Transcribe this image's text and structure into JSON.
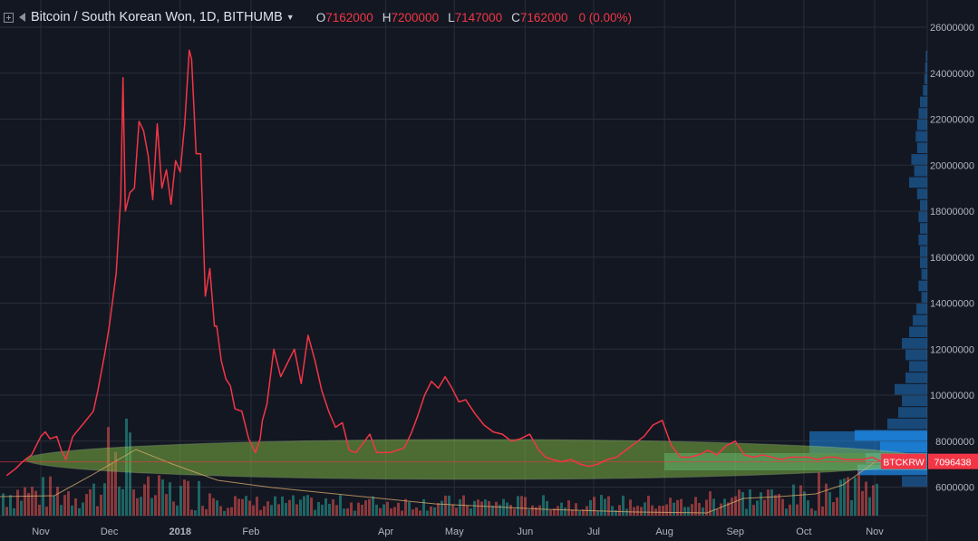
{
  "header": {
    "symbol_title": "Bitcoin / South Korean Won, 1D, BITHUMB",
    "open_key": "O",
    "open": "7162000",
    "high_key": "H",
    "high": "7200000",
    "low_key": "L",
    "low": "7147000",
    "close_key": "C",
    "close": "7162000",
    "change": "0 (0.00%)",
    "icons": [
      "expand-icon",
      "flag-icon",
      "chevron-down-icon"
    ]
  },
  "colors": {
    "background": "#131722",
    "price_line": "#f23645",
    "grid": "#2a2e39",
    "profile": "#1e88e5",
    "value_area": "#4dd0c4",
    "ellipse": "#7cb342",
    "vol_up": "#26a69a",
    "vol_down": "#ef5350"
  },
  "chart_data": {
    "type": "line",
    "y_ticks": [
      "26000000",
      "24000000",
      "22000000",
      "20000000",
      "18000000",
      "16000000",
      "14000000",
      "12000000",
      "10000000",
      "8000000",
      "6000000"
    ],
    "x_ticks": [
      "Nov",
      "Dec",
      "2018",
      "Feb",
      "Apr",
      "May",
      "Jun",
      "Jul",
      "Aug",
      "Sep",
      "Oct",
      "Nov"
    ],
    "ylim": [
      4400000,
      27000000
    ],
    "grid": true,
    "price_label": {
      "symbol": "BTCKRW",
      "value": "7096438"
    },
    "series": [
      {
        "x": [
          "2017-10-17",
          "2017-10-21",
          "2017-10-24",
          "2017-10-28",
          "2017-11-01",
          "2017-11-03",
          "2017-11-05",
          "2017-11-08",
          "2017-11-10",
          "2017-11-12",
          "2017-11-15",
          "2017-11-20",
          "2017-11-24",
          "2017-11-26",
          "2017-11-29",
          "2017-12-01",
          "2017-12-04",
          "2017-12-06",
          "2017-12-07",
          "2017-12-08",
          "2017-12-10",
          "2017-12-12",
          "2017-12-14",
          "2017-12-16",
          "2017-12-18",
          "2017-12-20",
          "2017-12-22",
          "2017-12-24",
          "2017-12-26",
          "2017-12-28",
          "2017-12-30",
          "2018-01-01",
          "2018-01-03",
          "2018-01-05",
          "2018-01-06",
          "2018-01-08",
          "2018-01-10",
          "2018-01-12",
          "2018-01-14",
          "2018-01-16",
          "2018-01-17",
          "2018-01-19",
          "2018-01-21",
          "2018-01-23",
          "2018-01-25",
          "2018-01-28",
          "2018-01-31",
          "2018-02-03",
          "2018-02-05",
          "2018-02-06",
          "2018-02-08",
          "2018-02-11",
          "2018-02-14",
          "2018-02-17",
          "2018-02-20",
          "2018-02-23",
          "2018-02-26",
          "2018-03-01",
          "2018-03-04",
          "2018-03-07",
          "2018-03-10",
          "2018-03-13",
          "2018-03-16",
          "2018-03-19",
          "2018-03-22",
          "2018-03-25",
          "2018-03-28",
          "2018-03-31",
          "2018-04-03",
          "2018-04-06",
          "2018-04-09",
          "2018-04-12",
          "2018-04-15",
          "2018-04-18",
          "2018-04-21",
          "2018-04-24",
          "2018-04-27",
          "2018-04-30",
          "2018-05-03",
          "2018-05-06",
          "2018-05-10",
          "2018-05-14",
          "2018-05-18",
          "2018-05-22",
          "2018-05-26",
          "2018-05-30",
          "2018-06-03",
          "2018-06-07",
          "2018-06-10",
          "2018-06-13",
          "2018-06-17",
          "2018-06-21",
          "2018-06-25",
          "2018-06-29",
          "2018-07-03",
          "2018-07-07",
          "2018-07-11",
          "2018-07-15",
          "2018-07-19",
          "2018-07-23",
          "2018-07-27",
          "2018-07-31",
          "2018-08-04",
          "2018-08-08",
          "2018-08-12",
          "2018-08-16",
          "2018-08-20",
          "2018-08-24",
          "2018-08-28",
          "2018-09-01",
          "2018-09-05",
          "2018-09-09",
          "2018-09-13",
          "2018-09-17",
          "2018-09-21",
          "2018-09-25",
          "2018-09-29",
          "2018-10-03",
          "2018-10-07",
          "2018-10-11",
          "2018-10-15",
          "2018-10-19",
          "2018-10-23",
          "2018-10-27",
          "2018-10-31",
          "2018-11-04"
        ],
        "y": [
          6500000,
          6800000,
          7100000,
          7400000,
          8200000,
          8400000,
          8100000,
          8200000,
          7600000,
          7200000,
          8200000,
          8800000,
          9300000,
          10200000,
          11800000,
          13000000,
          15300000,
          18600000,
          23800000,
          18000000,
          18800000,
          19000000,
          21900000,
          21500000,
          20400000,
          18500000,
          21800000,
          19000000,
          19800000,
          18300000,
          20200000,
          19700000,
          21800000,
          25000000,
          24600000,
          20500000,
          20500000,
          14300000,
          15500000,
          13000000,
          13000000,
          11500000,
          10700000,
          10400000,
          9400000,
          9300000,
          8100000,
          7500000,
          8100000,
          8900000,
          9600000,
          12000000,
          10800000,
          11400000,
          12000000,
          10500000,
          12600000,
          11500000,
          10200000,
          9300000,
          8600000,
          8800000,
          7600000,
          7500000,
          7900000,
          8300000,
          7500000,
          7500000,
          7500000,
          7600000,
          7700000,
          8300000,
          9100000,
          10000000,
          10600000,
          10300000,
          10800000,
          10300000,
          9700000,
          9800000,
          9200000,
          8700000,
          8400000,
          8300000,
          8000000,
          8100000,
          8300000,
          7600000,
          7300000,
          7200000,
          7100000,
          7200000,
          7000000,
          6900000,
          7000000,
          7200000,
          7300000,
          7600000,
          7900000,
          8200000,
          8700000,
          8900000,
          7800000,
          7300000,
          7300000,
          7400000,
          7600000,
          7400000,
          7800000,
          8000000,
          7400000,
          7300000,
          7400000,
          7300000,
          7200000,
          7300000,
          7300000,
          7300000,
          7200000,
          7300000,
          7300000,
          7200000,
          7200000,
          7200000,
          7300000,
          7100000
        ]
      }
    ],
    "volume_profile": {
      "bin_width": 500000,
      "bins_low": [
        6000000,
        6500000,
        7000000,
        7500000,
        8000000,
        8500000,
        9000000,
        9500000,
        10000000,
        10500000,
        11000000,
        11500000,
        12000000,
        12500000,
        13000000,
        13500000,
        14000000,
        14500000,
        15000000,
        15500000,
        16000000,
        16500000,
        17000000,
        17500000,
        18000000,
        18500000,
        19000000,
        19500000,
        20000000,
        20500000,
        21000000,
        21500000,
        22000000,
        22500000,
        23000000,
        23500000,
        24000000,
        24500000
      ],
      "relative_volume": [
        0.35,
        0.95,
        0.85,
        0.65,
        1.0,
        0.55,
        0.4,
        0.35,
        0.45,
        0.3,
        0.25,
        0.3,
        0.35,
        0.25,
        0.2,
        0.15,
        0.08,
        0.12,
        0.08,
        0.1,
        0.1,
        0.12,
        0.1,
        0.12,
        0.1,
        0.14,
        0.25,
        0.18,
        0.22,
        0.14,
        0.16,
        0.14,
        0.12,
        0.1,
        0.06,
        0.04,
        0.03,
        0.02
      ],
      "value_area": [
        6500000,
        8500000
      ]
    }
  }
}
